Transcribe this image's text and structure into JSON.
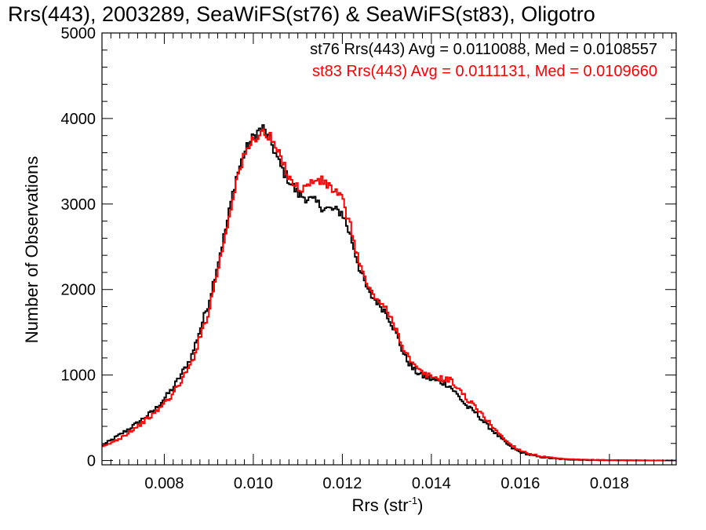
{
  "chart_data": {
    "type": "line",
    "title": "Rrs(443), 2003289, SeaWiFS(st76) & SeaWiFS(st83), Oligotro",
    "xlabel": "Rrs (str",
    "xlabel_sup": "-1",
    "xlabel_close": ")",
    "ylabel": "Number of Observations",
    "xlim": [
      0.0066,
      0.0195
    ],
    "ylim": [
      -50,
      5000
    ],
    "x_ticks": [
      0.008,
      0.01,
      0.012,
      0.014,
      0.016,
      0.018
    ],
    "x_tick_labels": [
      "0.008",
      "0.010",
      "0.012",
      "0.014",
      "0.016",
      "0.018"
    ],
    "y_ticks": [
      0,
      1000,
      2000,
      3000,
      4000,
      5000
    ],
    "y_tick_labels": [
      "0",
      "1000",
      "2000",
      "3000",
      "4000",
      "5000"
    ],
    "grid": false,
    "annotations": [
      {
        "text": "st76 Rrs(443) Avg = 0.0110088, Med = 0.0108557",
        "color": "#000000"
      },
      {
        "text": "st83 Rrs(443) Avg = 0.0111131, Med = 0.0109660",
        "color": "#ff0000"
      }
    ],
    "series": [
      {
        "color": "#000000",
        "x": [
          0.0066,
          0.007,
          0.0074,
          0.0078,
          0.0082,
          0.0086,
          0.009,
          0.0094,
          0.0096,
          0.0098,
          0.01,
          0.0102,
          0.0104,
          0.0106,
          0.0108,
          0.011,
          0.0112,
          0.0114,
          0.0116,
          0.0118,
          0.012,
          0.0122,
          0.0124,
          0.0126,
          0.0128,
          0.013,
          0.0132,
          0.0134,
          0.0136,
          0.0138,
          0.014,
          0.0142,
          0.0144,
          0.0146,
          0.0148,
          0.015,
          0.0152,
          0.0154,
          0.0156,
          0.0158,
          0.016,
          0.0162,
          0.0164,
          0.0166,
          0.0168,
          0.017,
          0.0172,
          0.0176,
          0.018,
          0.0185,
          0.019,
          0.0195
        ],
        "values": [
          170,
          300,
          440,
          600,
          850,
          1200,
          1850,
          2750,
          3280,
          3600,
          3780,
          3900,
          3720,
          3450,
          3280,
          3120,
          3070,
          3020,
          2950,
          2930,
          2900,
          2600,
          2220,
          1950,
          1850,
          1720,
          1500,
          1220,
          1060,
          990,
          950,
          920,
          880,
          760,
          630,
          560,
          440,
          340,
          240,
          150,
          100,
          70,
          45,
          32,
          22,
          15,
          10,
          6,
          4,
          2,
          1,
          0
        ]
      },
      {
        "color": "#ff0000",
        "x": [
          0.0066,
          0.007,
          0.0074,
          0.0078,
          0.0082,
          0.0086,
          0.009,
          0.0094,
          0.0096,
          0.0098,
          0.01,
          0.0102,
          0.0104,
          0.0106,
          0.0108,
          0.011,
          0.0112,
          0.0114,
          0.0116,
          0.0118,
          0.012,
          0.0122,
          0.0124,
          0.0126,
          0.0128,
          0.013,
          0.0132,
          0.0134,
          0.0136,
          0.0138,
          0.014,
          0.0142,
          0.0144,
          0.0146,
          0.0148,
          0.015,
          0.0152,
          0.0154,
          0.0156,
          0.0158,
          0.016,
          0.0162,
          0.0164,
          0.0166,
          0.0168,
          0.017,
          0.0172,
          0.0176,
          0.018,
          0.0185,
          0.019,
          0.0195
        ],
        "values": [
          150,
          260,
          400,
          560,
          780,
          1120,
          1750,
          2700,
          3240,
          3560,
          3760,
          3840,
          3760,
          3550,
          3330,
          3180,
          3200,
          3290,
          3250,
          3170,
          3050,
          2700,
          2280,
          2000,
          1880,
          1750,
          1550,
          1290,
          1110,
          1020,
          980,
          960,
          950,
          850,
          720,
          620,
          500,
          390,
          270,
          180,
          120,
          80,
          55,
          38,
          25,
          17,
          12,
          8,
          5,
          3,
          1,
          0
        ]
      }
    ]
  }
}
